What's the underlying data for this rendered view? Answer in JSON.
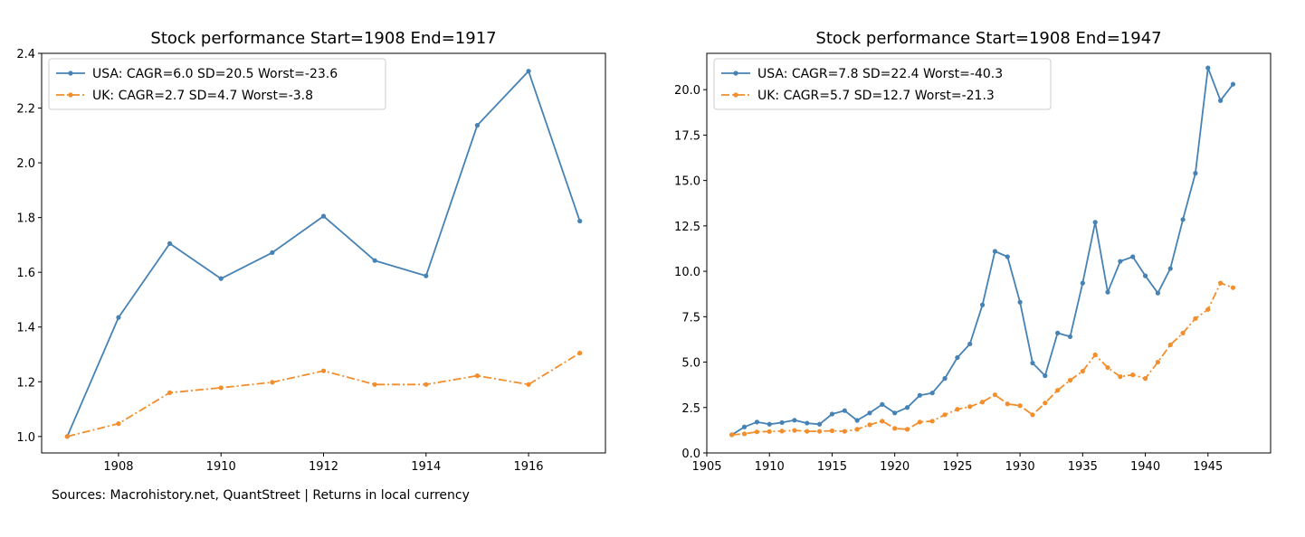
{
  "footer_note": "Sources: Macrohistory.net, QuantStreet  |  Returns in local currency",
  "chart_data": [
    {
      "type": "line",
      "title": "Stock performance  Start=1908  End=1917",
      "xlabel": "",
      "ylabel": "",
      "xlim": [
        1906.5,
        1917.5
      ],
      "ylim": [
        0.94,
        2.4
      ],
      "xticks": [
        1908,
        1910,
        1912,
        1914,
        1916
      ],
      "yticks": [
        1.0,
        1.2,
        1.4,
        1.6,
        1.8,
        2.0,
        2.2,
        2.4
      ],
      "ytick_decimals": 1,
      "legend_position": "upper-left",
      "grid": false,
      "x": [
        1907,
        1908,
        1909,
        1910,
        1911,
        1912,
        1913,
        1914,
        1915,
        1916,
        1917
      ],
      "series": [
        {
          "name": "USA: CAGR=6.0 SD=20.5 Worst=-23.6",
          "color": "#4682b4",
          "dash": "solid",
          "values": [
            1.0,
            1.435,
            1.705,
            1.577,
            1.672,
            1.805,
            1.643,
            1.587,
            2.137,
            2.335,
            1.787
          ]
        },
        {
          "name": "UK: CAGR=2.7 SD=4.7 Worst=-3.8",
          "color": "#f28e2b",
          "dash": "dashdot",
          "values": [
            1.0,
            1.047,
            1.16,
            1.178,
            1.198,
            1.24,
            1.19,
            1.19,
            1.222,
            1.19,
            1.305
          ]
        }
      ]
    },
    {
      "type": "line",
      "title": "Stock performance  Start=1908  End=1947",
      "xlabel": "",
      "ylabel": "",
      "xlim": [
        1905,
        1950
      ],
      "ylim": [
        0,
        22
      ],
      "xticks": [
        1905,
        1910,
        1915,
        1920,
        1925,
        1930,
        1935,
        1940,
        1945
      ],
      "yticks": [
        0.0,
        2.5,
        5.0,
        7.5,
        10.0,
        12.5,
        15.0,
        17.5,
        20.0
      ],
      "ytick_decimals": 1,
      "legend_position": "upper-left",
      "grid": false,
      "x": [
        1907,
        1908,
        1909,
        1910,
        1911,
        1912,
        1913,
        1914,
        1915,
        1916,
        1917,
        1918,
        1919,
        1920,
        1921,
        1922,
        1923,
        1924,
        1925,
        1926,
        1927,
        1928,
        1929,
        1930,
        1931,
        1932,
        1933,
        1934,
        1935,
        1936,
        1937,
        1938,
        1939,
        1940,
        1941,
        1942,
        1943,
        1944,
        1945,
        1946,
        1947
      ],
      "series": [
        {
          "name": "USA: CAGR=7.8 SD=22.4 Worst=-40.3",
          "color": "#4682b4",
          "dash": "solid",
          "values": [
            1.0,
            1.43,
            1.7,
            1.58,
            1.67,
            1.8,
            1.64,
            1.58,
            2.14,
            2.33,
            1.79,
            2.2,
            2.67,
            2.2,
            2.5,
            3.17,
            3.3,
            4.1,
            5.25,
            6.0,
            8.15,
            11.1,
            10.8,
            8.3,
            4.95,
            4.25,
            6.6,
            6.4,
            9.35,
            12.7,
            8.85,
            10.55,
            10.8,
            9.75,
            8.8,
            10.15,
            12.85,
            15.4,
            21.2,
            19.4,
            20.3
          ]
        },
        {
          "name": "UK: CAGR=5.7 SD=12.7 Worst=-21.3",
          "color": "#f28e2b",
          "dash": "dashdot",
          "values": [
            1.0,
            1.05,
            1.16,
            1.18,
            1.2,
            1.24,
            1.19,
            1.19,
            1.22,
            1.19,
            1.3,
            1.55,
            1.75,
            1.35,
            1.3,
            1.7,
            1.75,
            2.1,
            2.4,
            2.55,
            2.8,
            3.2,
            2.7,
            2.6,
            2.1,
            2.75,
            3.45,
            4.0,
            4.5,
            5.4,
            4.7,
            4.2,
            4.3,
            4.1,
            5.0,
            5.95,
            6.6,
            7.4,
            7.9,
            9.35,
            9.1
          ]
        }
      ]
    }
  ]
}
